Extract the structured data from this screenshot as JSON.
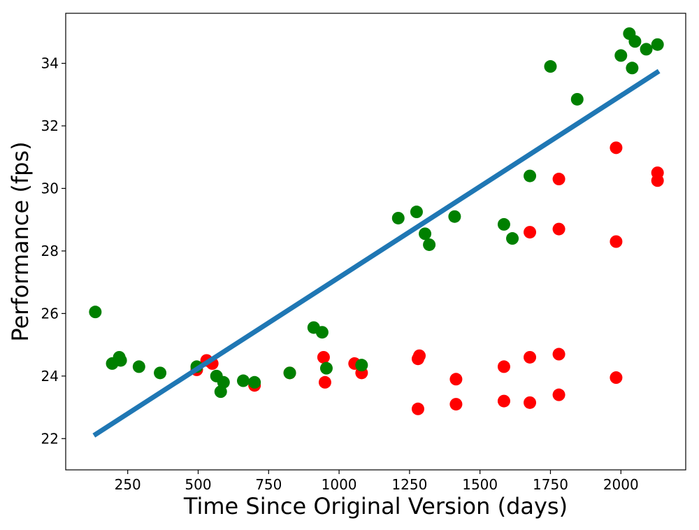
{
  "chart_data": {
    "type": "scatter",
    "title": "",
    "xlabel": "Time Since Original Version (days)",
    "ylabel": "Performance (fps)",
    "xlim": [
      30,
      2230
    ],
    "ylim": [
      21,
      35.6
    ],
    "x_ticks": [
      250,
      500,
      750,
      1000,
      1250,
      1500,
      1750,
      2000
    ],
    "y_ticks": [
      22,
      24,
      26,
      28,
      30,
      32,
      34
    ],
    "grid": false,
    "legend": "none",
    "series": [
      {
        "color": "#ff0000",
        "points": [
          [
            495,
            24.2
          ],
          [
            530,
            24.5
          ],
          [
            550,
            24.4
          ],
          [
            700,
            23.7
          ],
          [
            825,
            24.1
          ],
          [
            945,
            24.6
          ],
          [
            950,
            23.8
          ],
          [
            1055,
            24.4
          ],
          [
            1080,
            24.1
          ],
          [
            1280,
            24.55
          ],
          [
            1285,
            24.65
          ],
          [
            1280,
            22.95
          ],
          [
            1415,
            23.9
          ],
          [
            1415,
            23.1
          ],
          [
            1585,
            24.3
          ],
          [
            1585,
            23.2
          ],
          [
            1677,
            28.6
          ],
          [
            1677,
            24.6
          ],
          [
            1677,
            23.15
          ],
          [
            1780,
            30.3
          ],
          [
            1780,
            28.7
          ],
          [
            1780,
            24.7
          ],
          [
            1780,
            23.4
          ],
          [
            1983,
            31.3
          ],
          [
            1983,
            28.3
          ],
          [
            1983,
            23.95
          ],
          [
            2130,
            30.5
          ],
          [
            2130,
            30.25
          ]
        ]
      },
      {
        "color": "#008000",
        "points": [
          [
            135,
            26.05
          ],
          [
            195,
            24.4
          ],
          [
            220,
            24.6
          ],
          [
            225,
            24.5
          ],
          [
            290,
            24.3
          ],
          [
            365,
            24.1
          ],
          [
            495,
            24.3
          ],
          [
            565,
            24.0
          ],
          [
            580,
            23.5
          ],
          [
            590,
            23.8
          ],
          [
            660,
            23.85
          ],
          [
            700,
            23.8
          ],
          [
            825,
            24.1
          ],
          [
            910,
            25.55
          ],
          [
            940,
            25.4
          ],
          [
            955,
            24.25
          ],
          [
            1080,
            24.35
          ],
          [
            1210,
            29.05
          ],
          [
            1275,
            29.25
          ],
          [
            1305,
            28.55
          ],
          [
            1320,
            28.2
          ],
          [
            1410,
            29.1
          ],
          [
            1585,
            28.85
          ],
          [
            1615,
            28.4
          ],
          [
            1677,
            30.4
          ],
          [
            1750,
            33.9
          ],
          [
            1845,
            32.85
          ],
          [
            2000,
            34.25
          ],
          [
            2030,
            34.95
          ],
          [
            2040,
            33.85
          ],
          [
            2050,
            34.7
          ],
          [
            2090,
            34.45
          ],
          [
            2130,
            34.6
          ]
        ]
      }
    ],
    "trendline": {
      "color": "#1f77b4",
      "points": [
        [
          130,
          22.1
        ],
        [
          2135,
          33.75
        ]
      ]
    }
  }
}
